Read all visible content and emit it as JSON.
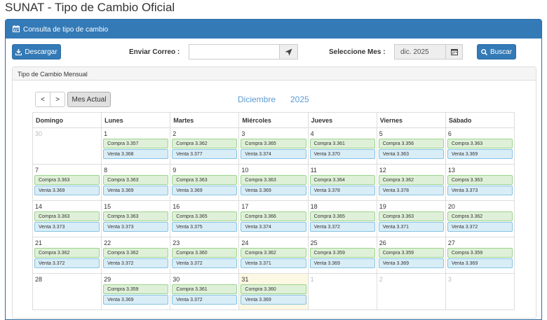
{
  "page_title": "SUNAT - Tipo de Cambio Oficial",
  "panel": {
    "title": "Consulta de tipo de cambio",
    "icon": "calendar-icon"
  },
  "toolbar": {
    "download_label": "Descargar",
    "email_label": "Enviar Correo :",
    "email_value": "",
    "month_label": "Seleccione Mes :",
    "month_value": "dic. 2025",
    "search_label": "Buscar"
  },
  "subpanel_title": "Tipo de Cambio Mensual",
  "calendar": {
    "prev_label": "<",
    "next_label": ">",
    "today_label": "Mes Actual",
    "month_name": "Diciembre",
    "year": "2025",
    "weekdays": [
      "Domingo",
      "Lunes",
      "Martes",
      "Miércoles",
      "Jueves",
      "Viernes",
      "Sábado"
    ],
    "weeks": [
      [
        {
          "day": "30",
          "other": true
        },
        {
          "day": "1",
          "compra": "Compra 3.357",
          "venta": "Venta 3.368"
        },
        {
          "day": "2",
          "compra": "Compra 3.362",
          "venta": "Venta 3.377"
        },
        {
          "day": "3",
          "compra": "Compra 3.365",
          "venta": "Venta 3.374"
        },
        {
          "day": "4",
          "compra": "Compra 3.361",
          "venta": "Venta 3.370"
        },
        {
          "day": "5",
          "compra": "Compra 3.356",
          "venta": "Venta 3.363"
        },
        {
          "day": "6",
          "compra": "Compra 3.363",
          "venta": "Venta 3.369"
        }
      ],
      [
        {
          "day": "7",
          "compra": "Compra 3.363",
          "venta": "Venta 3.369"
        },
        {
          "day": "8",
          "compra": "Compra 3.363",
          "venta": "Venta 3.369"
        },
        {
          "day": "9",
          "compra": "Compra 3.363",
          "venta": "Venta 3.369"
        },
        {
          "day": "10",
          "compra": "Compra 3.363",
          "venta": "Venta 3.369"
        },
        {
          "day": "11",
          "compra": "Compra 3.364",
          "venta": "Venta 3.378"
        },
        {
          "day": "12",
          "compra": "Compra 3.362",
          "venta": "Venta 3.378"
        },
        {
          "day": "13",
          "compra": "Compra 3.363",
          "venta": "Venta 3.373"
        }
      ],
      [
        {
          "day": "14",
          "compra": "Compra 3.363",
          "venta": "Venta 3.373"
        },
        {
          "day": "15",
          "compra": "Compra 3.363",
          "venta": "Venta 3.373"
        },
        {
          "day": "16",
          "compra": "Compra 3.365",
          "venta": "Venta 3.375"
        },
        {
          "day": "17",
          "compra": "Compra 3.366",
          "venta": "Venta 3.374"
        },
        {
          "day": "18",
          "compra": "Compra 3.365",
          "venta": "Venta 3.372"
        },
        {
          "day": "19",
          "compra": "Compra 3.363",
          "venta": "Venta 3.371"
        },
        {
          "day": "20",
          "compra": "Compra 3.362",
          "venta": "Venta 3.372"
        }
      ],
      [
        {
          "day": "21",
          "compra": "Compra 3.362",
          "venta": "Venta 3.372"
        },
        {
          "day": "22",
          "compra": "Compra 3.362",
          "venta": "Venta 3.372"
        },
        {
          "day": "23",
          "compra": "Compra 3.360",
          "venta": "Venta 3.372"
        },
        {
          "day": "24",
          "compra": "Compra 3.362",
          "venta": "Venta 3.371"
        },
        {
          "day": "25",
          "compra": "Compra 3.359",
          "venta": "Venta 3.369"
        },
        {
          "day": "26",
          "compra": "Compra 3.359",
          "venta": "Venta 3.369"
        },
        {
          "day": "27",
          "compra": "Compra 3.359",
          "venta": "Venta 3.369"
        }
      ],
      [
        {
          "day": "28"
        },
        {
          "day": "29",
          "compra": "Compra 3.359",
          "venta": "Venta 3.369"
        },
        {
          "day": "30",
          "compra": "Compra 3.361",
          "venta": "Venta 3.372"
        },
        {
          "day": "31",
          "compra": "Compra 3.360",
          "venta": "Venta 3.369",
          "today": true
        },
        {
          "day": "1",
          "other": true
        },
        {
          "day": "2",
          "other": true
        },
        {
          "day": "3",
          "other": true
        }
      ]
    ]
  }
}
